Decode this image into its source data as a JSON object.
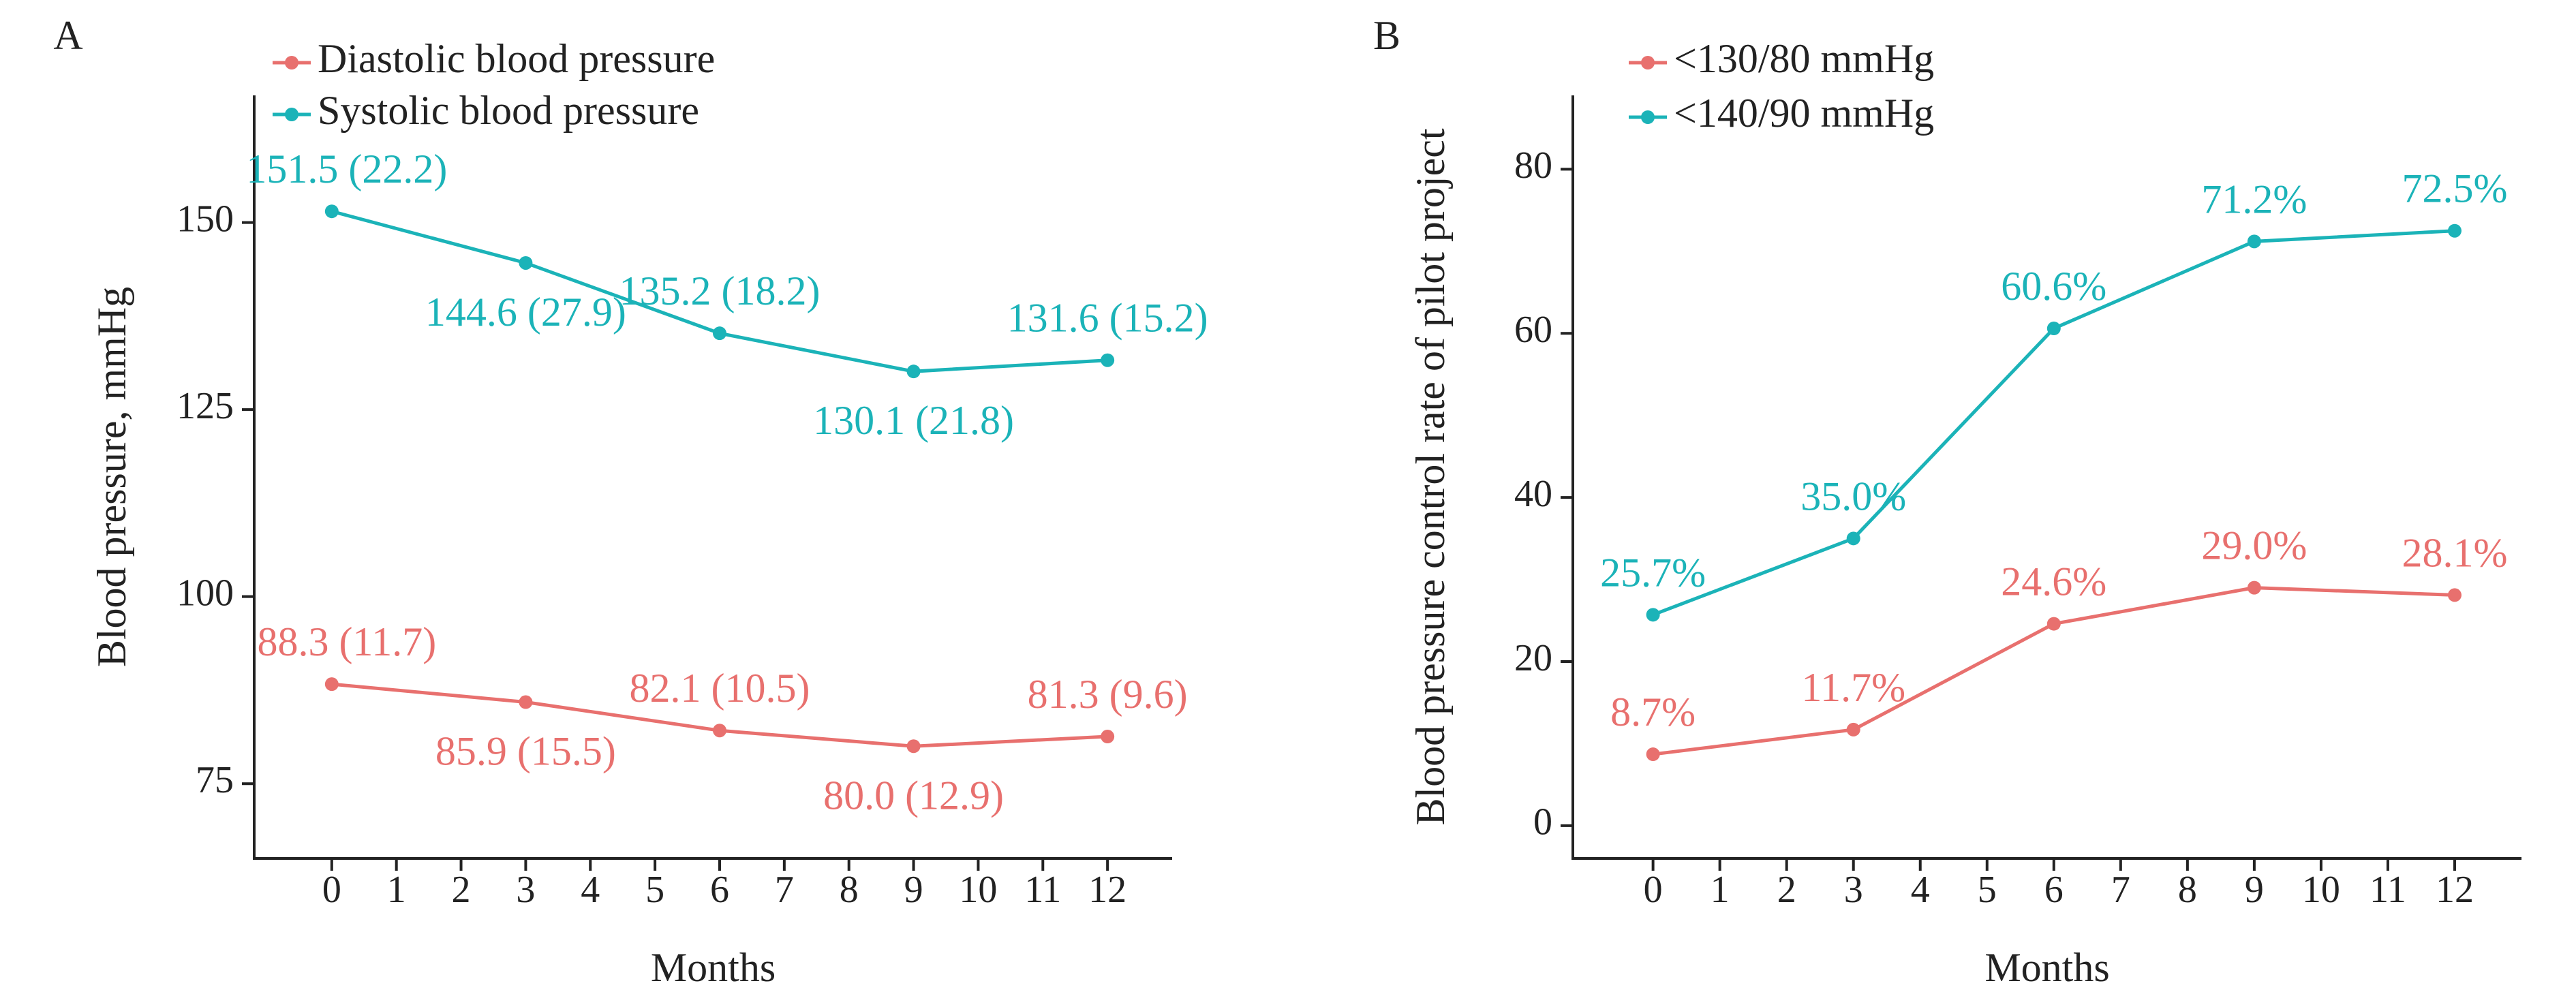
{
  "chart_data": [
    {
      "type": "line",
      "panel_label": "A",
      "xlabel": "Months",
      "ylabel": "Blood pressure, mmHg",
      "x_ticks": [
        0,
        1,
        2,
        3,
        4,
        5,
        6,
        7,
        8,
        9,
        10,
        11,
        12
      ],
      "xlim": [
        -1.2,
        13.0
      ],
      "ylim": [
        65,
        167
      ],
      "y_ticks": [
        75,
        100,
        125,
        150
      ],
      "legend_position": "top-left",
      "series": [
        {
          "name": "Diastolic blood pressure",
          "color": "#E8706E",
          "x": [
            0,
            3,
            6,
            9,
            12
          ],
          "values": [
            88.3,
            85.9,
            82.1,
            80.0,
            81.3
          ],
          "labels": [
            "88.3 (11.7)",
            "85.9 (15.5)",
            "82.1 (10.5)",
            "80.0 (12.9)",
            "81.3 (9.6)"
          ],
          "label_positions": [
            "above",
            "below",
            "above",
            "below",
            "above"
          ]
        },
        {
          "name": "Systolic blood pressure",
          "color": "#1BB3B8",
          "x": [
            0,
            3,
            6,
            9,
            12
          ],
          "values": [
            151.5,
            144.6,
            135.2,
            130.1,
            131.6
          ],
          "labels": [
            "151.5 (22.2)",
            "144.6 (27.9)",
            "135.2 (18.2)",
            "130.1 (21.8)",
            "131.6 (15.2)"
          ],
          "label_positions": [
            "above",
            "below",
            "above",
            "below",
            "above"
          ]
        }
      ]
    },
    {
      "type": "line",
      "panel_label": "B",
      "xlabel": "Months",
      "ylabel": "Blood pressure control rate of pilot project",
      "x_ticks": [
        0,
        1,
        2,
        3,
        4,
        5,
        6,
        7,
        8,
        9,
        10,
        11,
        12
      ],
      "xlim": [
        -1.2,
        13.0
      ],
      "ylim": [
        -4,
        89
      ],
      "y_ticks": [
        0,
        20,
        40,
        60,
        80
      ],
      "legend_position": "top-left",
      "series": [
        {
          "name": "<130/80 mmHg",
          "color": "#E8706E",
          "x": [
            0,
            3,
            6,
            9,
            12
          ],
          "values": [
            8.7,
            11.7,
            24.6,
            29.0,
            28.1
          ],
          "labels": [
            "8.7%",
            "11.7%",
            "24.6%",
            "29.0%",
            "28.1%"
          ],
          "label_positions": [
            "above",
            "above",
            "above",
            "above",
            "above"
          ]
        },
        {
          "name": "<140/90 mmHg",
          "color": "#1BB3B8",
          "x": [
            0,
            3,
            6,
            9,
            12
          ],
          "values": [
            25.7,
            35.0,
            60.6,
            71.2,
            72.5
          ],
          "labels": [
            "25.7%",
            "35.0%",
            "60.6%",
            "71.2%",
            "72.5%"
          ],
          "label_positions": [
            "above",
            "above",
            "above",
            "above",
            "above"
          ]
        }
      ]
    }
  ]
}
